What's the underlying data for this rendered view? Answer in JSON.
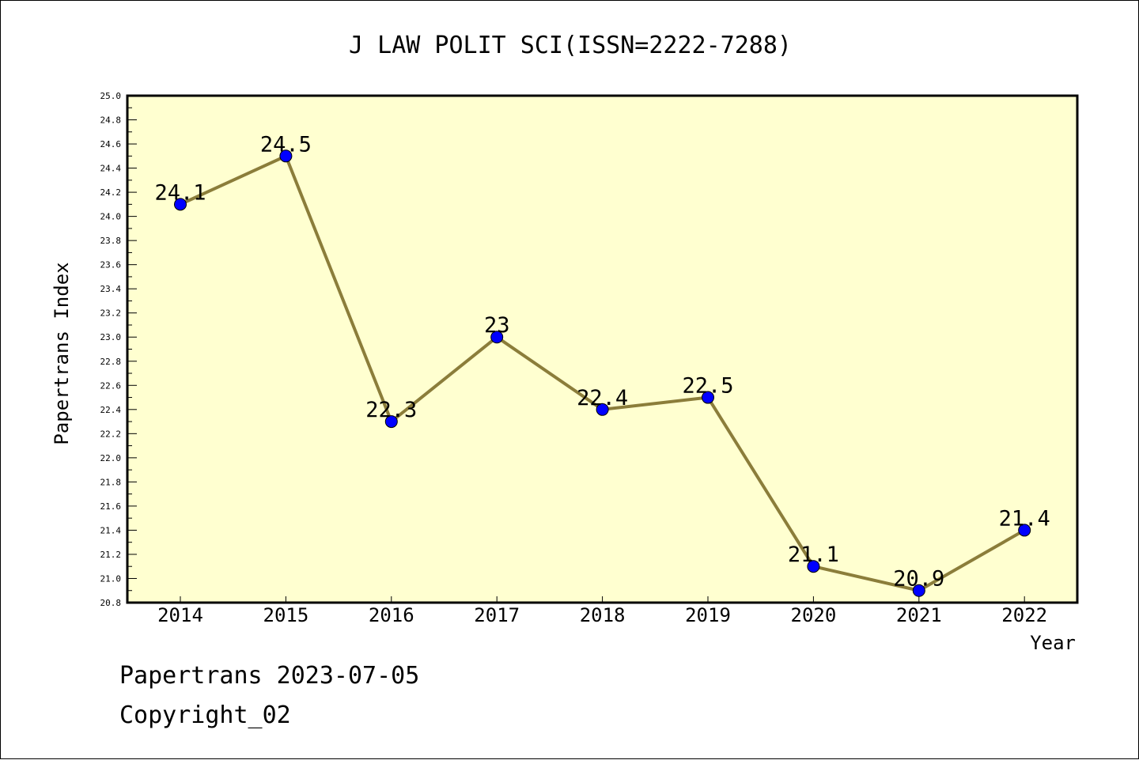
{
  "chart_data": {
    "type": "line",
    "title": "J LAW POLIT SCI(ISSN=2222-7288)",
    "xlabel": "Year",
    "ylabel": "Papertrans Index",
    "categories": [
      "2014",
      "2015",
      "2016",
      "2017",
      "2018",
      "2019",
      "2020",
      "2021",
      "2022"
    ],
    "series": [
      {
        "values": [
          24.1,
          24.5,
          22.3,
          23.0,
          22.4,
          22.5,
          21.1,
          20.9,
          21.4
        ]
      }
    ],
    "data_labels": [
      "24.1",
      "24.5",
      "22.3",
      "23",
      "22.4",
      "22.5",
      "21.1",
      "20.9",
      "21.4"
    ],
    "ylim": [
      20.8,
      25.0
    ],
    "y_major_step": 0.2,
    "y_minor_step": 0.1,
    "grid": false,
    "legend": "none",
    "colors": {
      "plot_background": "#ffffd0",
      "line": "#8b7d3a",
      "marker": "#0000ff"
    }
  },
  "footer": {
    "date_line": "Papertrans 2023-07-05",
    "copyright": "Copyright_02"
  }
}
